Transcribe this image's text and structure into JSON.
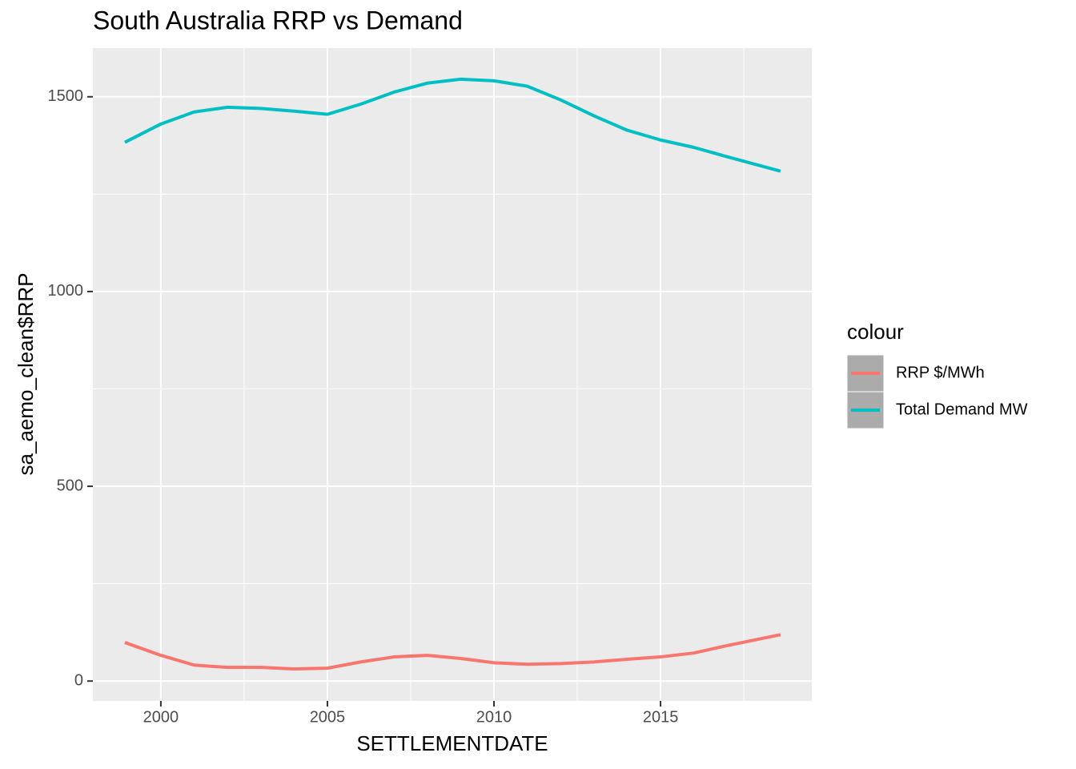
{
  "chart_data": {
    "type": "line",
    "title": "South Australia RRP vs Demand",
    "x_label": "SETTLEMENTDATE",
    "y_label": "sa_aemo_clean$RRP",
    "legend_title": "colour",
    "legend_position": "right",
    "grid": true,
    "background": "#ebebeb",
    "x": [
      1998.92,
      2000,
      2001,
      2002,
      2003,
      2004,
      2005,
      2006,
      2007,
      2008,
      2009,
      2010,
      2011,
      2012,
      2013,
      2014,
      2015,
      2016,
      2017,
      2018.6
    ],
    "series": [
      {
        "name": "RRP $/MWh",
        "color": "#f8766d",
        "values": [
          99,
          66,
          41,
          35,
          35,
          31,
          33,
          49,
          62,
          66,
          58,
          47,
          43,
          45,
          49,
          56,
          62,
          72,
          91,
          119
        ]
      },
      {
        "name": "Total Demand MW",
        "color": "#00bfc4",
        "values": [
          1383,
          1430,
          1461,
          1473,
          1470,
          1463,
          1455,
          1481,
          1512,
          1535,
          1545,
          1541,
          1527,
          1492,
          1451,
          1414,
          1389,
          1370,
          1346,
          1309
        ]
      }
    ],
    "xlim": [
      1997.96,
      2019.54
    ],
    "xticks": [
      2000,
      2005,
      2010,
      2015
    ],
    "xminorticks": [
      2002.5,
      2007.5,
      2012.5,
      2017.5
    ],
    "ylim": [
      -51,
      1625
    ],
    "yticks": [
      0,
      500,
      1000,
      1500
    ],
    "yminorticks": [
      250,
      750,
      1250
    ]
  }
}
